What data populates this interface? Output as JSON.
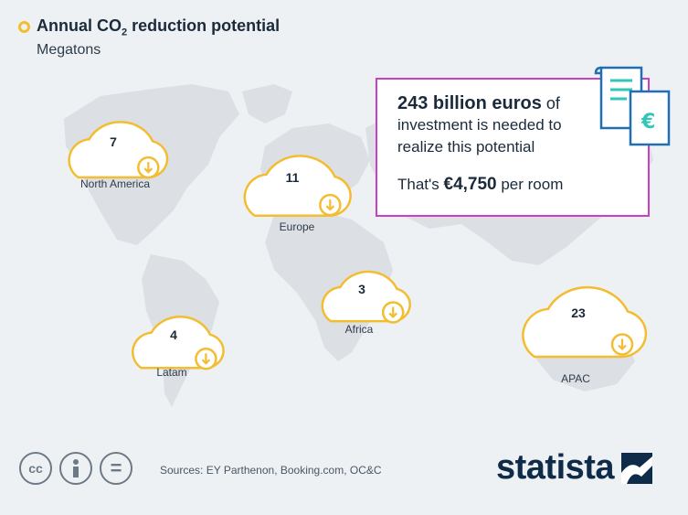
{
  "header": {
    "title_pre": "Annual CO",
    "title_sub": "2",
    "title_post": " reduction potential",
    "subtitle": "Megatons"
  },
  "chart_data": {
    "type": "map",
    "title": "Annual CO2 reduction potential",
    "subtitle": "Megatons",
    "categories": [
      "North America",
      "Europe",
      "Africa",
      "Latam",
      "APAC"
    ],
    "values": [
      7,
      11,
      3,
      4,
      23
    ],
    "regions": [
      {
        "name": "North America",
        "value": 7
      },
      {
        "name": "Europe",
        "value": 11
      },
      {
        "name": "Africa",
        "value": 3
      },
      {
        "name": "Latam",
        "value": 4
      },
      {
        "name": "APAC",
        "value": 23
      }
    ],
    "colors": {
      "cloud": "#f2bd31",
      "callout_border": "#c940c6",
      "land": "#dcdfe3"
    }
  },
  "callout": {
    "amount": "243 billion euros",
    "line1_rest": " of",
    "line2": "investment is needed to",
    "line2b": "realize this potential",
    "per_prefix": "That's ",
    "per_amount": "€4,750",
    "per_suffix": " per room"
  },
  "footer": {
    "sources": "Sources: EY Parthenon, Booking.com, OC&C",
    "cc_icons": [
      "cc-icon",
      "info-person-icon",
      "equals-icon"
    ],
    "cc_labels": {
      "cc": "cc",
      "eq": "="
    },
    "logo": "statista"
  },
  "icons": {
    "receipt": "euro-receipt-icon",
    "logo_mark": "statista-mark-icon"
  }
}
